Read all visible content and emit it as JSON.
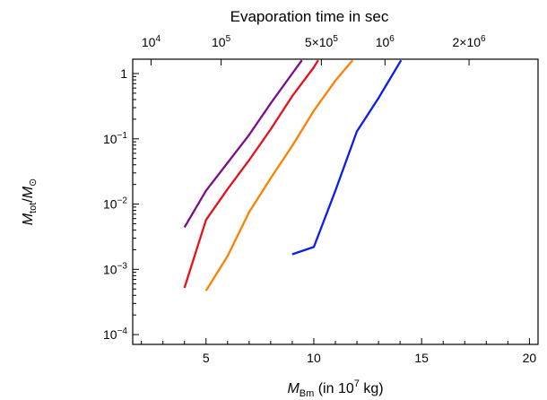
{
  "chart_data": {
    "type": "line",
    "title": "",
    "top_axis_title": "Evaporation time in sec",
    "top_axis_ticks": [
      {
        "x": 2.45,
        "base": "10",
        "exp": "4"
      },
      {
        "x": 5.7,
        "base": "10",
        "exp": "5"
      },
      {
        "x": 10.35,
        "base": "5×10",
        "exp": "5"
      },
      {
        "x": 13.3,
        "base": "10",
        "exp": "6"
      },
      {
        "x": 17.2,
        "base": "2×10",
        "exp": "6"
      }
    ],
    "xlabel": {
      "main": "M",
      "sub": "Bm",
      "rest": " (in 10",
      "sup": "7",
      "tail": " kg)"
    },
    "ylabel": {
      "main": "M",
      "sub": "tot",
      "slash": "/",
      "main2": "M",
      "sub2": "⊙"
    },
    "xlim": [
      1.6,
      20.4
    ],
    "ylim_log10": [
      -4.15,
      0.22
    ],
    "x_ticks": [
      5,
      10,
      15,
      20
    ],
    "y_ticks": [
      {
        "value": 1,
        "base": "1",
        "exp": ""
      },
      {
        "value": 0.1,
        "base": "10",
        "exp": "−1"
      },
      {
        "value": 0.01,
        "base": "10",
        "exp": "−2"
      },
      {
        "value": 0.001,
        "base": "10",
        "exp": "−3"
      },
      {
        "value": 0.0001,
        "base": "10",
        "exp": "−4"
      }
    ],
    "grid": false,
    "series": [
      {
        "color": "#7b0f8a",
        "points": [
          [
            4,
            0.0044
          ],
          [
            5,
            0.016
          ],
          [
            6,
            0.043
          ],
          [
            7,
            0.115
          ],
          [
            8,
            0.35
          ],
          [
            9,
            1.0
          ],
          [
            9.45,
            1.6
          ]
        ]
      },
      {
        "color": "#e8101a",
        "points": [
          [
            4,
            0.00052
          ],
          [
            5,
            0.0057
          ],
          [
            6,
            0.017
          ],
          [
            7,
            0.047
          ],
          [
            8,
            0.14
          ],
          [
            9,
            0.45
          ],
          [
            10,
            1.25
          ],
          [
            10.2,
            1.6
          ]
        ]
      },
      {
        "color": "#ff8000",
        "points": [
          [
            5,
            0.00047
          ],
          [
            6,
            0.0016
          ],
          [
            7,
            0.0075
          ],
          [
            8,
            0.025
          ],
          [
            9,
            0.078
          ],
          [
            10,
            0.27
          ],
          [
            11,
            0.78
          ],
          [
            11.8,
            1.6
          ]
        ]
      },
      {
        "color": "#0a1cf0",
        "points": [
          [
            9,
            0.0017
          ],
          [
            10,
            0.0022
          ],
          [
            11,
            0.016
          ],
          [
            12,
            0.13
          ],
          [
            13,
            0.42
          ],
          [
            14,
            1.5
          ],
          [
            14.05,
            1.6
          ]
        ]
      }
    ]
  }
}
